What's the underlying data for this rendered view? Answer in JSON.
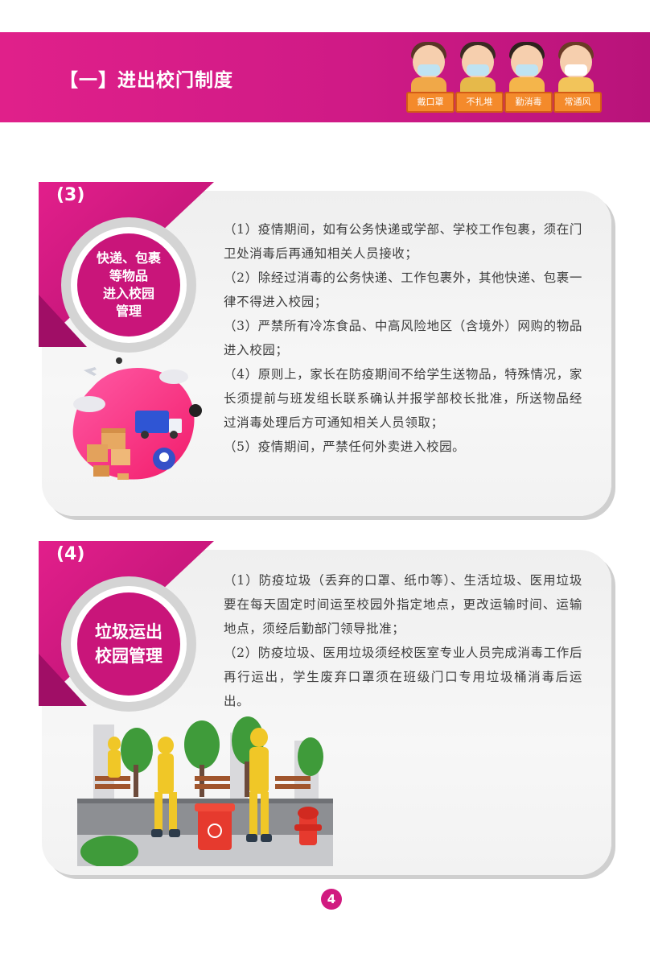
{
  "header": {
    "title": "【一】进出校门制度",
    "kids": [
      "戴口罩",
      "不扎堆",
      "勤消毒",
      "常通风"
    ]
  },
  "sections": [
    {
      "number": "(3)",
      "label_lines": [
        "快递、包裹",
        "等物品",
        "进入校园",
        "管理"
      ],
      "paragraphs": [
        "（1）疫情期间，如有公务快递或学部、学校工作包裹，须在门卫处消毒后再通知相关人员接收；",
        "（2）除经过消毒的公务快递、工作包裹外，其他快递、包裹一律不得进入校园；",
        "（3）严禁所有冷冻食品、中高风险地区（含境外）网购的物品进入校园；",
        "（4）原则上，家长在防疫期间不给学生送物品，特殊情况，家长须提前与班发组长联系确认并报学部校长批准，所送物品经过消毒处理后方可通知相关人员领取；",
        "（5）疫情期间，严禁任何外卖进入校园。"
      ]
    },
    {
      "number": "(4)",
      "label_lines": [
        "垃圾运出",
        "校园管理"
      ],
      "paragraphs": [
        "（1）防疫垃圾（丢弃的口罩、纸巾等）、生活垃圾、医用垃圾要在每天固定时间运至校园外指定地点，更改运输时间、运输地点，须经后勤部门领导批准；",
        "（2）防疫垃圾、医用垃圾须经校医室专业人员完成消毒工作后再行运出，学生废弃口罩须在班级门口专用垃圾桶消毒后运出。"
      ]
    }
  ],
  "page_number": "4",
  "colors": {
    "magenta": "#d11a80",
    "panel": "#f2f2f2"
  }
}
